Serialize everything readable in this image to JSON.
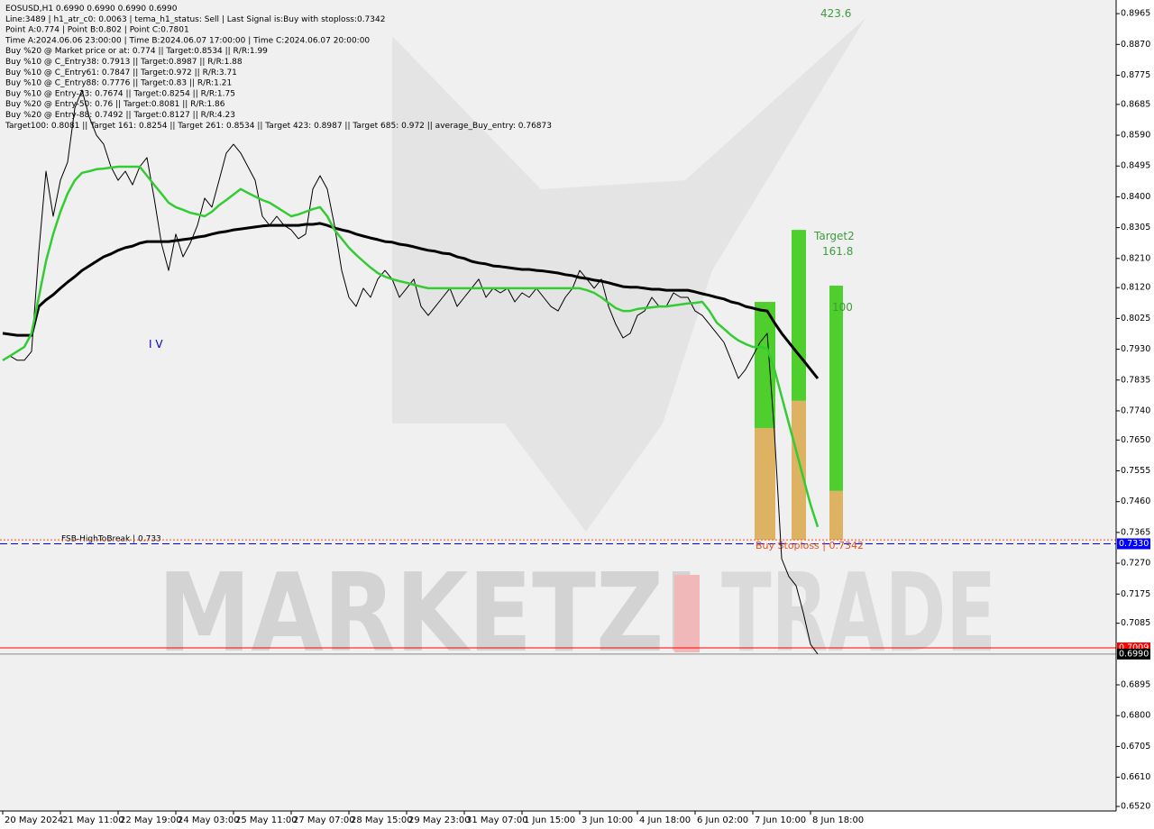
{
  "chart_data": {
    "type": "line",
    "info_lines": [
      "EOSUSD,H1  0.6990 0.6990 0.6990 0.6990",
      "Line:3489 | h1_atr_c0: 0.0063 | tema_h1_status: Sell | Last Signal is:Buy with stoploss:0.7342",
      "Point A:0.774 | Point B:0.802 | Point C:0.7801",
      "Time A:2024.06.06 23:00:00 | Time B:2024.06.07 17:00:00 | Time C:2024.06.07 20:00:00",
      "Buy %20 @ Market price or at: 0.774 || Target:0.8534 || R/R:1.99",
      "Buy %10 @ C_Entry38: 0.7913 || Target:0.8987 || R/R:1.88",
      "Buy %10 @ C_Entry61: 0.7847 || Target:0.972 || R/R:3.71",
      "Buy %10 @ C_Entry88: 0.7776 || Target:0.83 || R/R:1.21",
      "Buy %10 @ Entry-23: 0.7674 || Target:0.8254 || R/R:1.75",
      "Buy %20 @ Entry-50: 0.76 || Target:0.8081 || R/R:1.86",
      "Buy %20 @ Entry-88: 0.7492 || Target:0.8127 || R/R:4.23",
      "Target100: 0.8081 || Target 161: 0.8254 || Target 261: 0.8534 || Target 423: 0.8987 || Target 685: 0.972 || average_Buy_entry: 0.76873"
    ],
    "watermark": [
      "MARKETZI",
      "TRADE"
    ],
    "annotations": [
      "Target2",
      "161.8",
      "100",
      "423.6",
      "I V"
    ],
    "categories": [
      "20 May 2024",
      null,
      null,
      null,
      null,
      null,
      null,
      null,
      "21 May 11:00",
      null,
      null,
      null,
      null,
      null,
      null,
      null,
      "22 May 19:00",
      null,
      null,
      null,
      null,
      null,
      null,
      null,
      "24 May 03:00",
      null,
      null,
      null,
      null,
      null,
      null,
      null,
      "25 May 11:00",
      null,
      null,
      null,
      null,
      null,
      null,
      null,
      "27 May 07:00",
      null,
      null,
      null,
      null,
      null,
      null,
      null,
      "28 May 15:00",
      null,
      null,
      null,
      null,
      null,
      null,
      null,
      "29 May 23:00",
      null,
      null,
      null,
      null,
      null,
      null,
      null,
      "31 May 07:00",
      null,
      null,
      null,
      null,
      null,
      null,
      null,
      "1 Jun 15:00",
      null,
      null,
      null,
      null,
      null,
      null,
      null,
      "3 Jun 10:00",
      null,
      null,
      null,
      null,
      null,
      null,
      null,
      "4 Jun 18:00",
      null,
      null,
      null,
      null,
      null,
      null,
      null,
      "6 Jun 02:00",
      null,
      null,
      null,
      null,
      null,
      null,
      null,
      "7 Jun 10:00",
      null,
      null,
      null,
      null,
      null,
      null,
      null,
      "8 Jun 18:00",
      null
    ],
    "series": [
      {
        "color": "#000000",
        "width": 1,
        "values": [
          0.7896,
          0.7909,
          0.7896,
          0.7896,
          0.7923,
          0.8229,
          0.8479,
          0.834,
          0.8451,
          0.8507,
          0.8674,
          0.8729,
          0.8646,
          0.859,
          0.8562,
          0.8493,
          0.8451,
          0.8479,
          0.8437,
          0.8493,
          0.8521,
          0.8396,
          0.8257,
          0.8173,
          0.8285,
          0.8215,
          0.8257,
          0.8312,
          0.8396,
          0.8368,
          0.8451,
          0.8535,
          0.8562,
          0.8535,
          0.8493,
          0.8451,
          0.834,
          0.8312,
          0.834,
          0.8312,
          0.8298,
          0.8271,
          0.8285,
          0.8424,
          0.8465,
          0.8424,
          0.8312,
          0.8173,
          0.809,
          0.8062,
          0.8118,
          0.809,
          0.8146,
          0.8173,
          0.8146,
          0.809,
          0.8118,
          0.8146,
          0.8062,
          0.8034,
          0.8062,
          0.809,
          0.8118,
          0.8062,
          0.809,
          0.8118,
          0.8146,
          0.809,
          0.8118,
          0.8104,
          0.8118,
          0.8076,
          0.8104,
          0.809,
          0.8118,
          0.809,
          0.8062,
          0.8048,
          0.809,
          0.8118,
          0.8173,
          0.8146,
          0.8118,
          0.8146,
          0.8062,
          0.8007,
          0.7965,
          0.7979,
          0.8034,
          0.8048,
          0.809,
          0.8062,
          0.8062,
          0.8104,
          0.809,
          0.809,
          0.8048,
          0.8034,
          0.8007,
          0.7979,
          0.7951,
          0.7896,
          0.784,
          0.7868,
          0.7909,
          0.7951,
          0.7979,
          0.7673,
          0.7284,
          0.7229,
          0.7201,
          0.7117,
          0.702,
          0.699
        ]
      },
      {
        "color": "#000000",
        "width": 3,
        "values": [
          0.7979,
          0.7976,
          0.7973,
          0.7973,
          0.7973,
          0.8062,
          0.8082,
          0.8098,
          0.8118,
          0.8137,
          0.8154,
          0.8173,
          0.8187,
          0.8201,
          0.8215,
          0.8224,
          0.8235,
          0.8243,
          0.8248,
          0.8257,
          0.8262,
          0.8262,
          0.8262,
          0.8262,
          0.8265,
          0.8268,
          0.8271,
          0.8276,
          0.8279,
          0.8285,
          0.829,
          0.8293,
          0.8298,
          0.8301,
          0.8304,
          0.8307,
          0.831,
          0.8312,
          0.8312,
          0.8312,
          0.8312,
          0.8312,
          0.8315,
          0.8315,
          0.8318,
          0.8312,
          0.8304,
          0.8298,
          0.8293,
          0.8285,
          0.8279,
          0.8273,
          0.8268,
          0.8262,
          0.826,
          0.8254,
          0.8251,
          0.8246,
          0.824,
          0.8235,
          0.8232,
          0.8226,
          0.8224,
          0.8215,
          0.821,
          0.8201,
          0.8196,
          0.8193,
          0.8187,
          0.8185,
          0.8182,
          0.8179,
          0.8176,
          0.8176,
          0.8173,
          0.8171,
          0.8168,
          0.8165,
          0.816,
          0.8157,
          0.8151,
          0.8148,
          0.8143,
          0.814,
          0.8135,
          0.8129,
          0.8123,
          0.8121,
          0.8121,
          0.8118,
          0.8115,
          0.8115,
          0.8112,
          0.8112,
          0.8112,
          0.8112,
          0.8107,
          0.8101,
          0.8096,
          0.809,
          0.8085,
          0.8076,
          0.8071,
          0.8062,
          0.8057,
          0.8051,
          0.8048,
          0.8012,
          0.7979,
          0.7951,
          0.7923,
          0.7896,
          0.7868,
          0.784
        ]
      },
      {
        "color": "#33cc33",
        "width": 2.5,
        "values": [
          0.7896,
          0.7909,
          0.7923,
          0.7937,
          0.7979,
          0.809,
          0.8201,
          0.8285,
          0.8354,
          0.841,
          0.8451,
          0.8474,
          0.8479,
          0.8485,
          0.8487,
          0.849,
          0.8493,
          0.8493,
          0.8493,
          0.8493,
          0.8465,
          0.8437,
          0.841,
          0.8382,
          0.8368,
          0.836,
          0.8351,
          0.8346,
          0.834,
          0.8354,
          0.8374,
          0.839,
          0.8407,
          0.8424,
          0.8412,
          0.8401,
          0.839,
          0.8382,
          0.8368,
          0.8354,
          0.834,
          0.8346,
          0.8354,
          0.8362,
          0.8368,
          0.834,
          0.8298,
          0.8271,
          0.8243,
          0.8221,
          0.8201,
          0.8182,
          0.8165,
          0.8154,
          0.8146,
          0.814,
          0.8135,
          0.8129,
          0.8123,
          0.8118,
          0.8118,
          0.8118,
          0.8118,
          0.8118,
          0.8118,
          0.8118,
          0.8118,
          0.8118,
          0.8118,
          0.8118,
          0.8118,
          0.8118,
          0.8118,
          0.8118,
          0.8118,
          0.8118,
          0.8118,
          0.8118,
          0.8118,
          0.8118,
          0.8118,
          0.8112,
          0.8104,
          0.809,
          0.8073,
          0.8057,
          0.8048,
          0.8048,
          0.8054,
          0.8057,
          0.8059,
          0.8062,
          0.8062,
          0.8065,
          0.8068,
          0.8071,
          0.8073,
          0.8076,
          0.8048,
          0.8012,
          0.7993,
          0.7973,
          0.7957,
          0.7946,
          0.7937,
          0.7937,
          0.7932,
          0.7868,
          0.7784,
          0.7701,
          0.7618,
          0.7534,
          0.7451,
          0.7382
        ]
      }
    ],
    "target_zones": [
      {
        "low": 0.7342,
        "mid": 0.7687,
        "high": 0.8076
      },
      {
        "low": 0.7342,
        "mid": 0.7771,
        "high": 0.8298
      },
      {
        "low": 0.7342,
        "mid": 0.7493,
        "high": 0.8126
      }
    ],
    "levels": [
      {
        "label": "FSB-HighToBreak | 0.733",
        "value": 0.733,
        "color": "#0000ff"
      },
      {
        "label": "Buy Stoploss | 0.7342",
        "value": 0.7342,
        "color": "#e8501e"
      }
    ],
    "price_labels": [
      {
        "value": 0.733,
        "label": "0.7330",
        "color": "#0000ff"
      },
      {
        "value": 0.7009,
        "label": "0.7009",
        "color": "#ff0000"
      },
      {
        "value": 0.699,
        "label": "0.6990",
        "color": "#000000"
      }
    ],
    "ylim": [
      0.6506,
      0.9007
    ],
    "yticks": [
      0.8965,
      {
        "value": 0.887,
        "label": "0.8870"
      },
      0.8775,
      0.8685,
      {
        "value": 0.859,
        "label": "0.8590"
      },
      0.8495,
      {
        "value": 0.84,
        "label": "0.8400"
      },
      0.8305,
      {
        "value": 0.821,
        "label": "0.8210"
      },
      {
        "value": 0.812,
        "label": "0.8120"
      },
      0.8025,
      {
        "value": 0.793,
        "label": "0.7930"
      },
      0.7835,
      {
        "value": 0.774,
        "label": "0.7740"
      },
      {
        "value": 0.765,
        "label": "0.7650"
      },
      0.7555,
      {
        "value": 0.746,
        "label": "0.7460"
      },
      0.7365,
      {
        "value": 0.727,
        "label": "0.7270"
      },
      0.7175,
      0.7085,
      0.6895,
      {
        "value": 0.68,
        "label": "0.6800"
      },
      0.6705,
      {
        "value": 0.661,
        "label": "0.6610"
      },
      {
        "value": 0.652,
        "label": "0.6520"
      }
    ]
  }
}
